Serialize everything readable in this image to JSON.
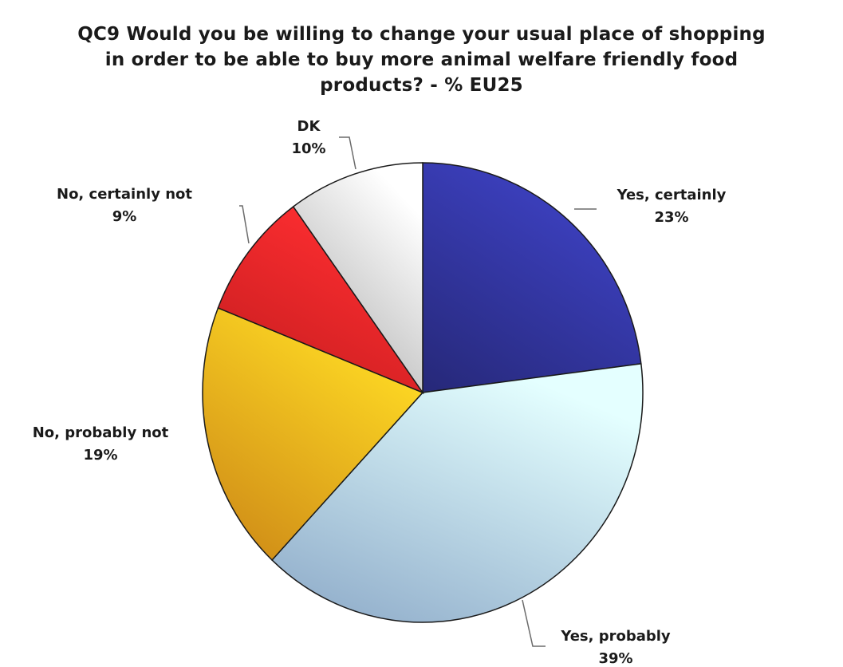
{
  "chart_data": {
    "type": "pie",
    "title_lines": [
      "QC9 Would you be willing to change your usual place of shopping",
      "in order to be able to buy more animal welfare friendly food",
      "products?  - % EU25"
    ],
    "slices": [
      {
        "label": "Yes, certainly",
        "value": 23,
        "value_label": "23%",
        "color": "#2e3192"
      },
      {
        "label": "Yes, probably",
        "value": 39,
        "value_label": "39%",
        "color": "#a9cdf3"
      },
      {
        "label": "No, probably not",
        "value": 19,
        "value_label": "19%",
        "color": "#f7a21b"
      },
      {
        "label": "No, certainly not",
        "value": 9,
        "value_label": "9%",
        "color": "#ed2224"
      },
      {
        "label": "DK",
        "value": 10,
        "value_label": "10%",
        "color": "#c8c8c8"
      }
    ]
  }
}
